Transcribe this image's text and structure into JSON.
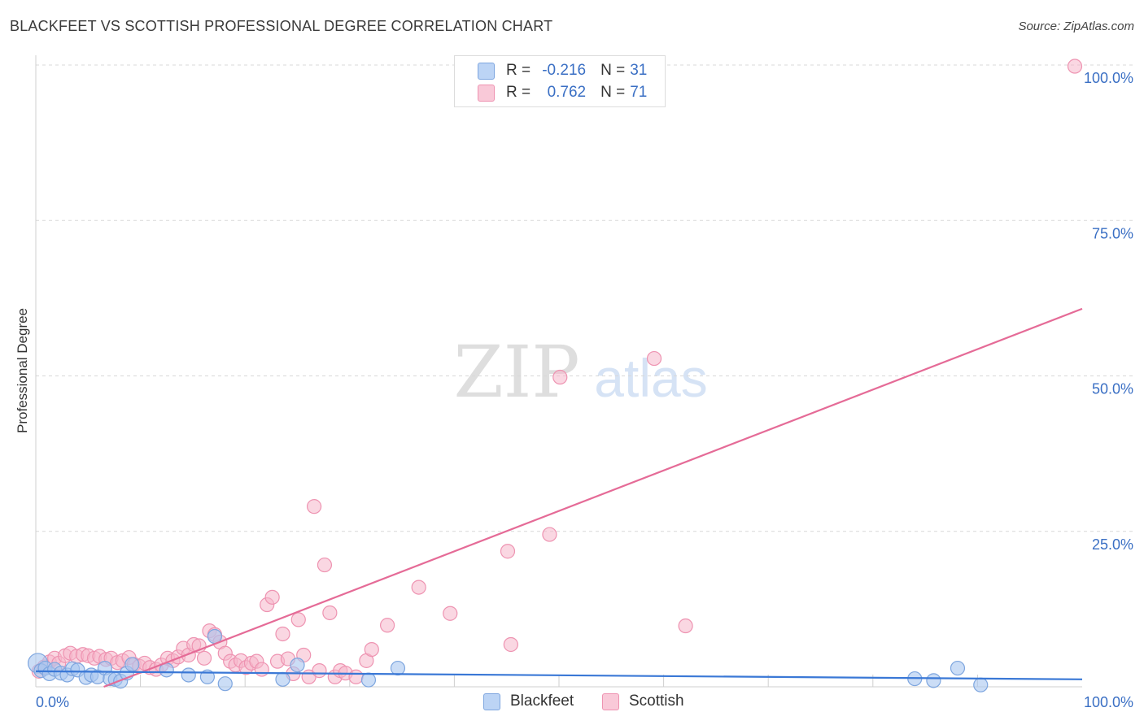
{
  "title": "BLACKFEET VS SCOTTISH PROFESSIONAL DEGREE CORRELATION CHART",
  "source": "Source: ZipAtlas.com",
  "watermark": {
    "zip": "ZIP",
    "atlas": "atlas"
  },
  "colors": {
    "blackfeet_fill": "#a9c6f0",
    "blackfeet_stroke": "#7ea6df",
    "blackfeet_line": "#3a78d6",
    "scottish_fill": "#f6b7cb",
    "scottish_stroke": "#ee93b1",
    "scottish_line": "#e56b97",
    "tick_text": "#3a6fc4",
    "grid": "#d8d8d8"
  },
  "legend": {
    "rows": [
      {
        "swatch": "blackfeet",
        "r_label": "R =",
        "r_value": "-0.216",
        "n_label": "N =",
        "n_value": "31"
      },
      {
        "swatch": "scottish",
        "r_label": "R =",
        "r_value": "0.762",
        "n_label": "N =",
        "n_value": "71"
      }
    ]
  },
  "bottom_legend": {
    "blackfeet": "Blackfeet",
    "scottish": "Scottish"
  },
  "chart_data": {
    "type": "scatter",
    "title": "BLACKFEET VS SCOTTISH PROFESSIONAL DEGREE CORRELATION CHART",
    "xlabel": "",
    "ylabel": "Professional Degree",
    "xlim": [
      0,
      100
    ],
    "ylim": [
      0,
      100
    ],
    "x_tick_labels": [
      "0.0%",
      "100.0%"
    ],
    "y_ticks": [
      25,
      50,
      75,
      100
    ],
    "y_tick_labels": [
      "25.0%",
      "50.0%",
      "75.0%",
      "100.0%"
    ],
    "grid": true,
    "legend_position": "top-center",
    "series": [
      {
        "name": "Blackfeet",
        "R": -0.216,
        "N": 31,
        "trend": {
          "x0": 0,
          "y0": 2.5,
          "x1": 100,
          "y1": 1.2
        },
        "points": [
          [
            0.2,
            3.8
          ],
          [
            0.5,
            2.6
          ],
          [
            0.9,
            3.0
          ],
          [
            1.3,
            2.1
          ],
          [
            1.8,
            2.8
          ],
          [
            2.4,
            2.2
          ],
          [
            3.0,
            1.9
          ],
          [
            3.5,
            2.9
          ],
          [
            4.0,
            2.7
          ],
          [
            4.8,
            1.5
          ],
          [
            5.3,
            1.9
          ],
          [
            5.9,
            1.6
          ],
          [
            6.6,
            3.0
          ],
          [
            7.1,
            1.3
          ],
          [
            7.6,
            1.2
          ],
          [
            8.1,
            0.9
          ],
          [
            8.7,
            2.2
          ],
          [
            9.2,
            3.6
          ],
          [
            12.5,
            2.7
          ],
          [
            14.6,
            1.9
          ],
          [
            16.4,
            1.6
          ],
          [
            17.1,
            8.1
          ],
          [
            18.1,
            0.5
          ],
          [
            23.6,
            1.2
          ],
          [
            25.0,
            3.5
          ],
          [
            31.8,
            1.1
          ],
          [
            34.6,
            3.0
          ],
          [
            84.0,
            1.3
          ],
          [
            85.8,
            1.0
          ],
          [
            88.1,
            3.0
          ],
          [
            90.3,
            0.3
          ]
        ]
      },
      {
        "name": "Scottish",
        "R": 0.762,
        "N": 71,
        "trend": {
          "x0": 6.5,
          "y0": 0,
          "x1": 100,
          "y1": 60.8
        },
        "points": [
          [
            0.3,
            2.5
          ],
          [
            0.8,
            3.2
          ],
          [
            1.3,
            4.0
          ],
          [
            1.8,
            4.6
          ],
          [
            2.2,
            3.8
          ],
          [
            2.8,
            5.0
          ],
          [
            3.3,
            5.4
          ],
          [
            3.9,
            4.9
          ],
          [
            4.5,
            5.2
          ],
          [
            5.0,
            5.0
          ],
          [
            5.6,
            4.6
          ],
          [
            6.1,
            4.9
          ],
          [
            6.7,
            4.4
          ],
          [
            7.2,
            4.6
          ],
          [
            7.8,
            3.9
          ],
          [
            8.3,
            4.2
          ],
          [
            8.9,
            4.7
          ],
          [
            9.4,
            3.6
          ],
          [
            9.9,
            3.3
          ],
          [
            10.4,
            3.8
          ],
          [
            10.9,
            3.1
          ],
          [
            11.5,
            2.8
          ],
          [
            12.0,
            3.5
          ],
          [
            12.6,
            4.6
          ],
          [
            13.1,
            4.2
          ],
          [
            13.6,
            4.8
          ],
          [
            14.1,
            6.2
          ],
          [
            14.6,
            5.1
          ],
          [
            15.1,
            6.8
          ],
          [
            15.6,
            6.6
          ],
          [
            16.1,
            4.6
          ],
          [
            16.6,
            9.0
          ],
          [
            17.1,
            8.4
          ],
          [
            17.6,
            7.2
          ],
          [
            18.1,
            5.4
          ],
          [
            18.6,
            4.1
          ],
          [
            19.1,
            3.5
          ],
          [
            19.6,
            4.2
          ],
          [
            20.1,
            3.1
          ],
          [
            20.6,
            3.8
          ],
          [
            21.1,
            4.1
          ],
          [
            21.6,
            2.8
          ],
          [
            22.1,
            13.2
          ],
          [
            22.6,
            14.4
          ],
          [
            23.1,
            4.1
          ],
          [
            23.6,
            8.5
          ],
          [
            24.1,
            4.5
          ],
          [
            24.6,
            2.1
          ],
          [
            25.1,
            10.8
          ],
          [
            25.6,
            5.1
          ],
          [
            26.1,
            1.6
          ],
          [
            26.6,
            29.0
          ],
          [
            27.1,
            2.6
          ],
          [
            27.6,
            19.6
          ],
          [
            28.1,
            11.9
          ],
          [
            28.6,
            1.6
          ],
          [
            29.1,
            2.6
          ],
          [
            29.6,
            2.2
          ],
          [
            30.6,
            1.6
          ],
          [
            31.6,
            4.2
          ],
          [
            32.1,
            6.0
          ],
          [
            33.6,
            9.9
          ],
          [
            36.6,
            16.0
          ],
          [
            39.6,
            11.8
          ],
          [
            45.1,
            21.8
          ],
          [
            45.4,
            6.8
          ],
          [
            49.1,
            24.5
          ],
          [
            50.1,
            49.8
          ],
          [
            59.1,
            52.8
          ],
          [
            62.1,
            9.8
          ],
          [
            99.3,
            99.8
          ]
        ]
      }
    ]
  }
}
